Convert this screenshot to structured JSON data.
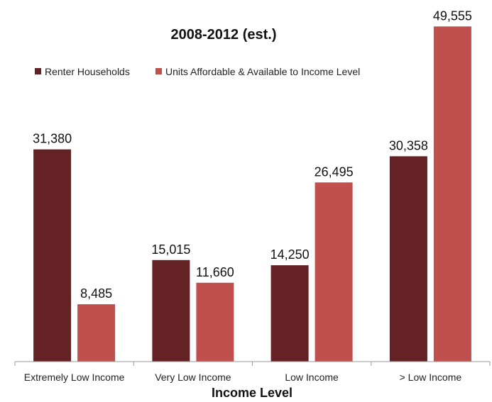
{
  "chart_data": {
    "type": "bar",
    "title": "2008-2012 (est.)",
    "xlabel": "Income Level",
    "ylabel": "",
    "categories": [
      "Extremely Low Income",
      "Very Low Income",
      "Low Income",
      "> Low Income"
    ],
    "series": [
      {
        "name": "Renter Households",
        "color": "#652224",
        "values": [
          31380,
          15015,
          14250,
          30358
        ],
        "labels": [
          "31,380",
          "15,015",
          "14,250",
          "30,358"
        ]
      },
      {
        "name": "Units Affordable & Available to Income Level",
        "color": "#C0504D",
        "values": [
          8485,
          11660,
          26495,
          49555
        ],
        "labels": [
          "8,485",
          "11,660",
          "26,495",
          "49,555"
        ]
      }
    ],
    "ylim": [
      0,
      50000
    ],
    "grid": false,
    "legend_position": "top-left"
  }
}
